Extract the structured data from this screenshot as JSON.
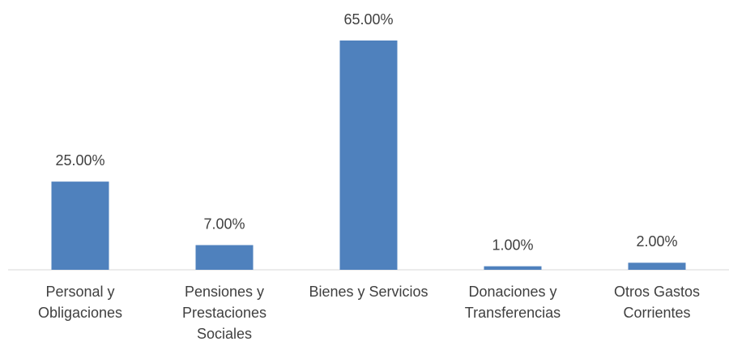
{
  "chart_data": {
    "type": "bar",
    "categories": [
      "Personal y Obligaciones",
      "Pensiones y Prestaciones Sociales",
      "Bienes y Servicios",
      "Donaciones y Transferencias",
      "Otros Gastos Corrientes"
    ],
    "values": [
      25,
      7,
      65,
      1,
      2
    ],
    "value_labels": [
      "25.00%",
      "7.00%",
      "65.00%",
      "1.00%",
      "2.00%"
    ],
    "color": "#4f81bd"
  }
}
